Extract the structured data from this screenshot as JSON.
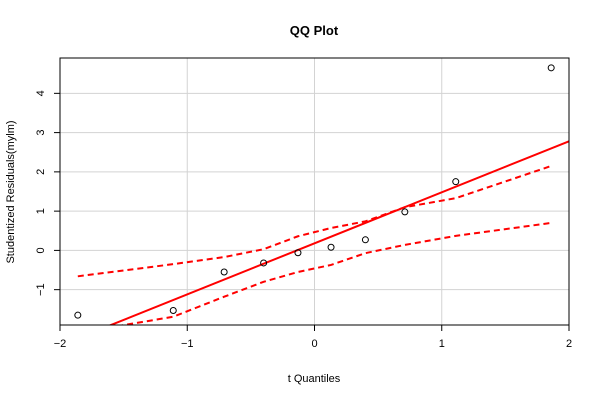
{
  "chart_data": {
    "type": "scatter",
    "title": "QQ Plot",
    "xlabel": "t Quantiles",
    "ylabel": "Studentized Residuals(mylm)",
    "xlim": [
      -2,
      2
    ],
    "ylim": [
      -1.9,
      4.9
    ],
    "xticks": [
      -2,
      -1,
      0,
      1,
      2
    ],
    "yticks": [
      -1,
      0,
      1,
      2,
      3,
      4
    ],
    "grid": true,
    "points": [
      {
        "x": -1.86,
        "y": -1.65
      },
      {
        "x": -1.11,
        "y": -1.53
      },
      {
        "x": -0.71,
        "y": -0.55
      },
      {
        "x": -0.4,
        "y": -0.32
      },
      {
        "x": -0.13,
        "y": -0.06
      },
      {
        "x": 0.13,
        "y": 0.08
      },
      {
        "x": 0.4,
        "y": 0.27
      },
      {
        "x": 0.71,
        "y": 0.98
      },
      {
        "x": 1.11,
        "y": 1.75
      },
      {
        "x": 1.86,
        "y": 4.65
      }
    ],
    "reference_line": {
      "intercept": 0.18,
      "slope": 1.3
    },
    "envelope_upper": [
      {
        "x": -1.86,
        "y": -0.66
      },
      {
        "x": -1.11,
        "y": -0.35
      },
      {
        "x": -0.71,
        "y": -0.17
      },
      {
        "x": -0.4,
        "y": 0.03
      },
      {
        "x": -0.13,
        "y": 0.36
      },
      {
        "x": 0.13,
        "y": 0.57
      },
      {
        "x": 0.4,
        "y": 0.74
      },
      {
        "x": 0.71,
        "y": 1.1
      },
      {
        "x": 1.11,
        "y": 1.33
      },
      {
        "x": 1.86,
        "y": 2.15
      }
    ],
    "envelope_lower": [
      {
        "x": -1.86,
        "y": -2.1
      },
      {
        "x": -1.11,
        "y": -1.69
      },
      {
        "x": -0.71,
        "y": -1.18
      },
      {
        "x": -0.4,
        "y": -0.8
      },
      {
        "x": -0.13,
        "y": -0.55
      },
      {
        "x": 0.13,
        "y": -0.37
      },
      {
        "x": 0.4,
        "y": -0.07
      },
      {
        "x": 0.71,
        "y": 0.14
      },
      {
        "x": 1.11,
        "y": 0.37
      },
      {
        "x": 1.86,
        "y": 0.7
      }
    ],
    "colors": {
      "line": "#ff0000",
      "points": "#000000",
      "grid": "#d3d3d3",
      "axis": "#000000"
    }
  }
}
